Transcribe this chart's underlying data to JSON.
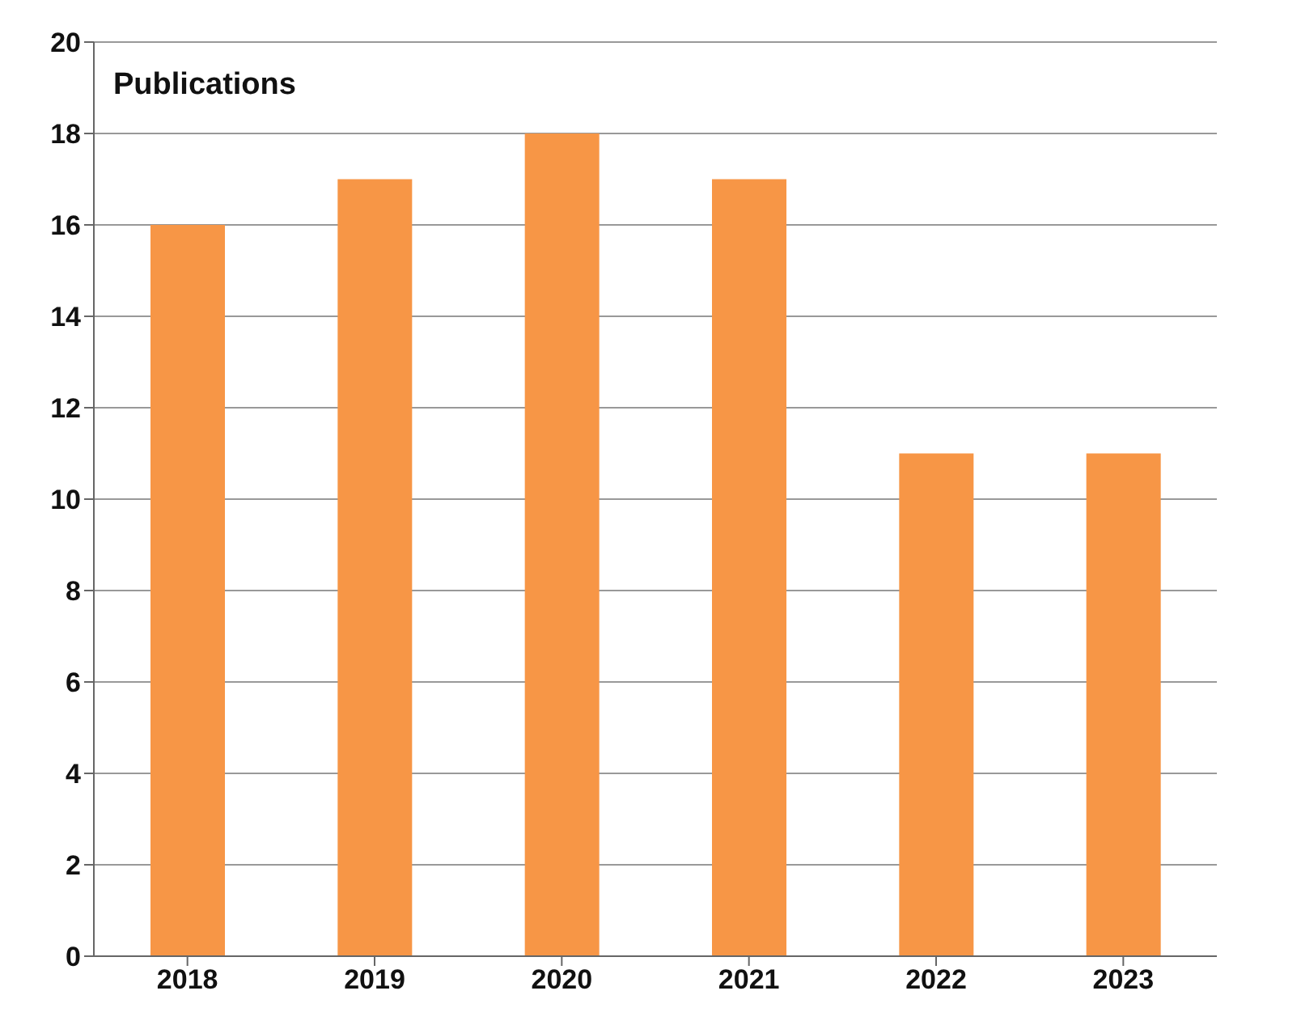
{
  "chart_data": {
    "type": "bar",
    "title": "Publications",
    "categories": [
      "2018",
      "2019",
      "2020",
      "2021",
      "2022",
      "2023"
    ],
    "values": [
      16,
      17,
      18,
      17,
      11,
      11
    ],
    "color": "#f79646",
    "ylim": [
      0,
      20
    ],
    "yticks": [
      0,
      2,
      4,
      6,
      8,
      10,
      12,
      14,
      16,
      18,
      20
    ],
    "grid": "y"
  }
}
